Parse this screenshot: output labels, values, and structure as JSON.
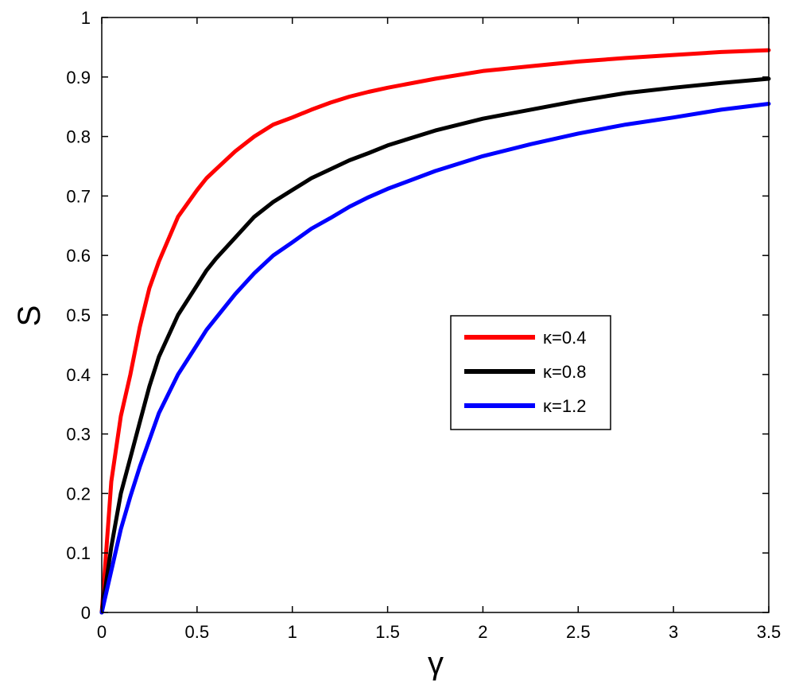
{
  "chart_data": {
    "type": "line",
    "title": "",
    "xlabel": "γ",
    "ylabel": "S",
    "xlim": [
      0,
      3.5
    ],
    "ylim": [
      0,
      1
    ],
    "xticks": [
      0,
      0.5,
      1,
      1.5,
      2,
      2.5,
      3,
      3.5
    ],
    "xtick_labels": [
      "0",
      "0.5",
      "1",
      "1.5",
      "2",
      "2.5",
      "3",
      "3.5"
    ],
    "yticks": [
      0,
      0.1,
      0.2,
      0.3,
      0.4,
      0.5,
      0.6,
      0.7,
      0.8,
      0.9,
      1
    ],
    "ytick_labels": [
      "0",
      "0.1",
      "0.2",
      "0.3",
      "0.4",
      "0.5",
      "0.6",
      "0.7",
      "0.8",
      "0.9",
      "1"
    ],
    "grid": false,
    "legend_position": "center-right",
    "x": [
      0,
      0.05,
      0.1,
      0.15,
      0.2,
      0.25,
      0.3,
      0.4,
      0.5,
      0.55,
      0.6,
      0.7,
      0.8,
      0.9,
      1.0,
      1.1,
      1.2,
      1.3,
      1.4,
      1.5,
      1.75,
      2.0,
      2.25,
      2.5,
      2.75,
      3.0,
      3.25,
      3.5
    ],
    "series": [
      {
        "name": "κ=0.4",
        "color": "#ff0000",
        "values": [
          0,
          0.22,
          0.33,
          0.4,
          0.48,
          0.545,
          0.59,
          0.665,
          0.71,
          0.73,
          0.745,
          0.775,
          0.8,
          0.82,
          0.832,
          0.845,
          0.857,
          0.867,
          0.875,
          0.882,
          0.897,
          0.91,
          0.918,
          0.926,
          0.932,
          0.937,
          0.942,
          0.945
        ]
      },
      {
        "name": "κ=0.8",
        "color": "#000000",
        "values": [
          0,
          0.11,
          0.2,
          0.26,
          0.32,
          0.38,
          0.43,
          0.5,
          0.55,
          0.575,
          0.595,
          0.63,
          0.665,
          0.69,
          0.71,
          0.73,
          0.745,
          0.76,
          0.772,
          0.785,
          0.81,
          0.83,
          0.845,
          0.86,
          0.873,
          0.882,
          0.89,
          0.897
        ]
      },
      {
        "name": "κ=1.2",
        "color": "#0000ff",
        "values": [
          0,
          0.07,
          0.14,
          0.195,
          0.245,
          0.29,
          0.335,
          0.4,
          0.45,
          0.475,
          0.495,
          0.535,
          0.57,
          0.6,
          0.622,
          0.645,
          0.663,
          0.682,
          0.698,
          0.712,
          0.742,
          0.767,
          0.787,
          0.805,
          0.82,
          0.832,
          0.845,
          0.855
        ]
      }
    ]
  }
}
